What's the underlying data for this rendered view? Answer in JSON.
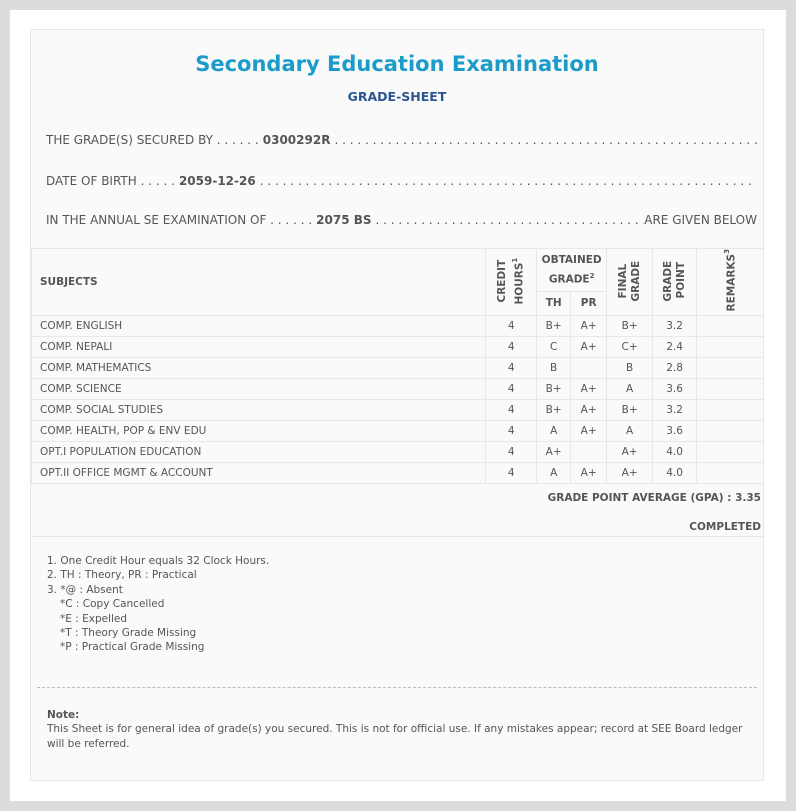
{
  "header": {
    "title": "Secondary Education Examination",
    "subtitle": "GRADE-SHEET"
  },
  "info": {
    "secured_by_label": "THE GRADE(S) SECURED BY . . . . . .",
    "symbol_no": "0300292R",
    "dob_label": "DATE OF BIRTH . . . . .",
    "dob": "2059-12-26",
    "exam_label": "IN THE ANNUAL SE EXAMINATION OF . . . . . .",
    "exam_year": "2075 BS",
    "exam_suffix": "ARE GIVEN BELOW"
  },
  "table": {
    "headers": {
      "subjects": "SUBJECTS",
      "credit": "CREDIT HOURS",
      "credit_sup": "1",
      "obtained": "OBTAINED GRADE",
      "obtained_sup": "2",
      "th": "TH",
      "pr": "PR",
      "final": "FINAL GRADE",
      "point": "GRADE POINT",
      "remarks": "REMARKS",
      "remarks_sup": "3"
    },
    "rows": [
      {
        "subject": "COMP. ENGLISH",
        "credit": "4",
        "th": "B+",
        "pr": "A+",
        "final": "B+",
        "point": "3.2",
        "remarks": ""
      },
      {
        "subject": "COMP. NEPALI",
        "credit": "4",
        "th": "C",
        "pr": "A+",
        "final": "C+",
        "point": "2.4",
        "remarks": ""
      },
      {
        "subject": "COMP. MATHEMATICS",
        "credit": "4",
        "th": "B",
        "pr": "",
        "final": "B",
        "point": "2.8",
        "remarks": ""
      },
      {
        "subject": "COMP. SCIENCE",
        "credit": "4",
        "th": "B+",
        "pr": "A+",
        "final": "A",
        "point": "3.6",
        "remarks": ""
      },
      {
        "subject": "COMP. SOCIAL STUDIES",
        "credit": "4",
        "th": "B+",
        "pr": "A+",
        "final": "B+",
        "point": "3.2",
        "remarks": ""
      },
      {
        "subject": "COMP. HEALTH, POP & ENV EDU",
        "credit": "4",
        "th": "A",
        "pr": "A+",
        "final": "A",
        "point": "3.6",
        "remarks": ""
      },
      {
        "subject": "OPT.I POPULATION EDUCATION",
        "credit": "4",
        "th": "A+",
        "pr": "",
        "final": "A+",
        "point": "4.0",
        "remarks": ""
      },
      {
        "subject": "OPT.II OFFICE MGMT & ACCOUNT",
        "credit": "4",
        "th": "A",
        "pr": "A+",
        "final": "A+",
        "point": "4.0",
        "remarks": ""
      }
    ]
  },
  "summary": {
    "gpa_label": "GRADE POINT AVERAGE (GPA) :",
    "gpa": "3.35",
    "status": "COMPLETED"
  },
  "footnotes": [
    "1. One Credit Hour equals 32 Clock Hours.",
    "2. TH : Theory, PR : Practical",
    "3. *@ : Absent",
    "*C : Copy Cancelled",
    "*E : Expelled",
    "*T : Theory Grade Missing",
    "*P : Practical Grade Missing"
  ],
  "note": {
    "label": "Note:",
    "text": "This Sheet is for general idea of grade(s) you secured. This is not for official use. If any mistakes appear; record at SEE Board ledger will be referred."
  }
}
